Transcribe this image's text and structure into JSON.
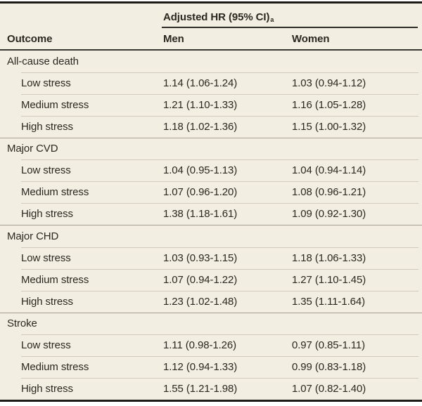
{
  "table": {
    "spanner": "Adjusted HR (95% CI)",
    "spanner_footnote": "a",
    "columns": [
      "Outcome",
      "Men",
      "Women"
    ],
    "sections": [
      {
        "label": "All-cause death",
        "rows": [
          {
            "label": "Low stress",
            "men": "1.14 (1.06-1.24)",
            "women": "1.03 (0.94-1.12)"
          },
          {
            "label": "Medium stress",
            "men": "1.21 (1.10-1.33)",
            "women": "1.16 (1.05-1.28)"
          },
          {
            "label": "High stress",
            "men": "1.18 (1.02-1.36)",
            "women": "1.15 (1.00-1.32)"
          }
        ]
      },
      {
        "label": "Major CVD",
        "rows": [
          {
            "label": "Low stress",
            "men": "1.04 (0.95-1.13)",
            "women": "1.04 (0.94-1.14)"
          },
          {
            "label": "Medium stress",
            "men": "1.07 (0.96-1.20)",
            "women": "1.08 (0.96-1.21)"
          },
          {
            "label": "High stress",
            "men": "1.38 (1.18-1.61)",
            "women": "1.09 (0.92-1.30)"
          }
        ]
      },
      {
        "label": "Major CHD",
        "rows": [
          {
            "label": "Low stress",
            "men": "1.03 (0.93-1.15)",
            "women": "1.18 (1.06-1.33)"
          },
          {
            "label": "Medium stress",
            "men": "1.07 (0.94-1.22)",
            "women": "1.27 (1.10-1.45)"
          },
          {
            "label": "High stress",
            "men": "1.23 (1.02-1.48)",
            "women": "1.35 (1.11-1.64)"
          }
        ]
      },
      {
        "label": "Stroke",
        "rows": [
          {
            "label": "Low stress",
            "men": "1.11 (0.98-1.26)",
            "women": "0.97 (0.85-1.11)"
          },
          {
            "label": "Medium stress",
            "men": "1.12 (0.94-1.33)",
            "women": "0.99 (0.83-1.18)"
          },
          {
            "label": "High stress",
            "men": "1.55 (1.21-1.98)",
            "women": "1.07 (0.82-1.40)"
          }
        ]
      }
    ],
    "colors": {
      "background": "#f2eee2",
      "text": "#2a2820",
      "heavy_rule": "#1b1a15",
      "header_rule": "#393731",
      "section_rule": "#a49e90",
      "row_rule": "#d0cabb"
    }
  }
}
